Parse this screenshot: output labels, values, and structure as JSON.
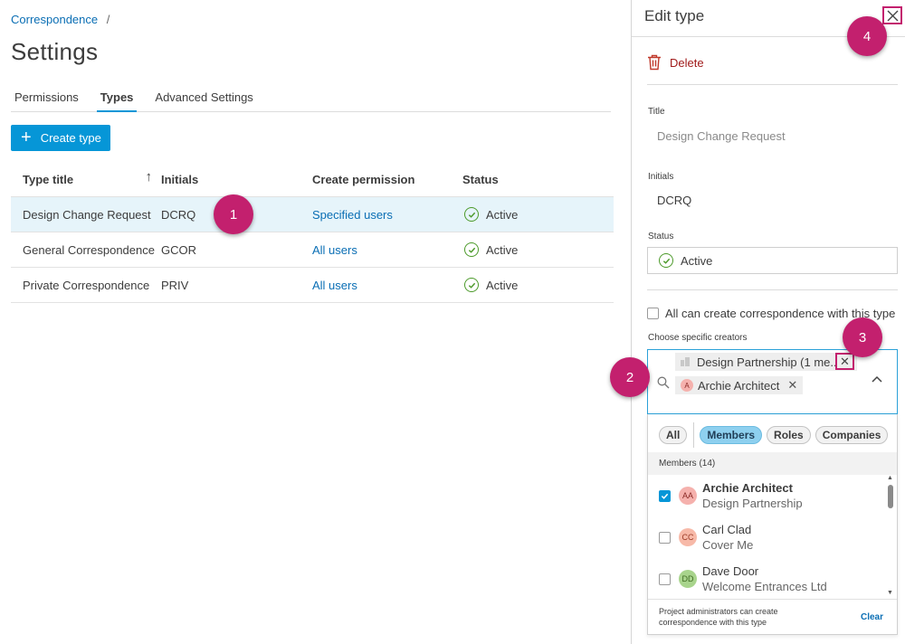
{
  "breadcrumb": {
    "parent": "Correspondence",
    "separator": "/"
  },
  "page_title": "Settings",
  "tabs": [
    {
      "label": "Permissions"
    },
    {
      "label": "Types"
    },
    {
      "label": "Advanced Settings"
    }
  ],
  "create_button": {
    "label": "Create type"
  },
  "table": {
    "headers": [
      "Type title",
      "Initials",
      "Create permission",
      "Status"
    ],
    "rows": [
      {
        "title": "Design Change Request",
        "initials": "DCRQ",
        "permission": "Specified users",
        "status": "Active"
      },
      {
        "title": "General Correspondence",
        "initials": "GCOR",
        "permission": "All users",
        "status": "Active"
      },
      {
        "title": "Private Correspondence",
        "initials": "PRIV",
        "permission": "All users",
        "status": "Active"
      }
    ]
  },
  "annotations": [
    "1",
    "2",
    "3",
    "4"
  ],
  "panel": {
    "title": "Edit type",
    "delete_label": "Delete",
    "title_label": "Title",
    "title_value": "Design Change Request",
    "initials_label": "Initials",
    "initials_value": "DCRQ",
    "status_label": "Status",
    "status_value": "Active",
    "all_can_create": "All can create correspondence with this type",
    "choose_creators": "Choose specific creators",
    "chips": [
      {
        "label": "Design Partnership (1 me...",
        "avatar": ""
      },
      {
        "label": "Archie Architect",
        "avatar": "A"
      }
    ],
    "filters": [
      "All",
      "Members",
      "Roles",
      "Companies"
    ],
    "members_header": "Members (14)",
    "members": [
      {
        "initials": "AA",
        "name": "Archie Architect",
        "company": "Design Partnership",
        "checked": true
      },
      {
        "initials": "CC",
        "name": "Carl Clad",
        "company": "Cover Me",
        "checked": false
      },
      {
        "initials": "DD",
        "name": "Dave Door",
        "company": "Welcome Entrances Ltd",
        "checked": false
      }
    ],
    "footer_note": "Project administrators can create correspondence with this type",
    "clear_label": "Clear"
  },
  "colors": {
    "accent": "#0696d7",
    "link": "#0a6eb4",
    "annotation": "#c3206e",
    "active_status": "#4c9a2a",
    "delete": "#a01a1a",
    "avatar_aa": "#f5b1ad",
    "avatar_cc": "#f7b9a8",
    "avatar_dd": "#a8d48c"
  }
}
